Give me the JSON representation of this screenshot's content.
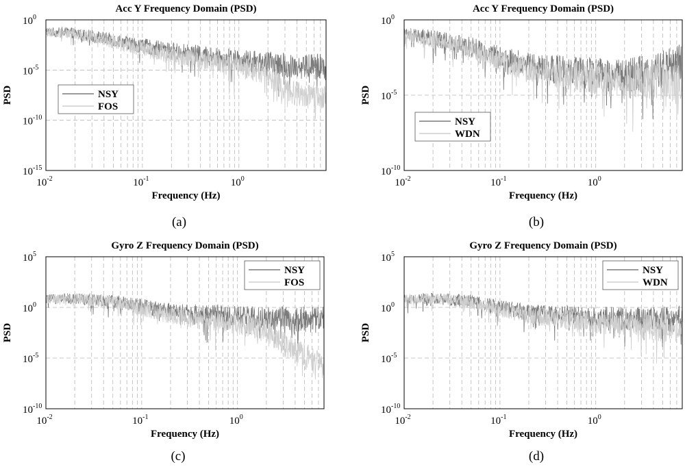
{
  "colors": {
    "series_dark": "#7a7a7a",
    "series_light": "#cfcfcf",
    "grid": "#b5b5b5",
    "axis": "#000000",
    "background": "#ffffff"
  },
  "chart_data": [
    {
      "panel_label": "(a)",
      "type": "line",
      "title": "Acc Y Frequency Domain (PSD)",
      "xlabel": "Frequency (Hz)",
      "ylabel": "PSD",
      "xscale": "log",
      "yscale": "log",
      "xlim": [
        0.01,
        8
      ],
      "ylim_exp": [
        -15,
        0
      ],
      "xticks": [
        {
          "base": "10",
          "exp": "-2"
        },
        {
          "base": "10",
          "exp": "-1"
        },
        {
          "base": "10",
          "exp": "0"
        }
      ],
      "yticks": [
        {
          "base": "10",
          "exp": "0"
        },
        {
          "base": "10",
          "exp": "-5"
        },
        {
          "base": "10",
          "exp": "-10"
        },
        {
          "base": "10",
          "exp": "-15"
        }
      ],
      "legend": {
        "position": "center-left",
        "entries": [
          "NSY",
          "FOS"
        ]
      },
      "series": [
        {
          "name": "NSY",
          "style": "dark",
          "x": [
            0.01,
            0.02,
            0.05,
            0.1,
            0.2,
            0.5,
            1,
            2,
            3,
            5,
            8
          ],
          "y_log10": [
            -1.2,
            -1.3,
            -2.0,
            -2.6,
            -3.1,
            -3.6,
            -4.0,
            -4.3,
            -4.5,
            -4.6,
            -4.7
          ]
        },
        {
          "name": "FOS",
          "style": "light",
          "x": [
            0.01,
            0.02,
            0.05,
            0.1,
            0.2,
            0.5,
            1,
            2,
            3,
            5,
            8
          ],
          "y_log10": [
            -1.2,
            -1.4,
            -2.2,
            -2.9,
            -3.6,
            -4.2,
            -4.7,
            -5.5,
            -7.0,
            -7.6,
            -7.9
          ]
        }
      ]
    },
    {
      "panel_label": "(b)",
      "type": "line",
      "title": "Acc Y Frequency Domain (PSD)",
      "xlabel": "Frequency (Hz)",
      "ylabel": "PSD",
      "xscale": "log",
      "yscale": "log",
      "xlim": [
        0.01,
        8
      ],
      "ylim_exp": [
        -10,
        0
      ],
      "xticks": [
        {
          "base": "10",
          "exp": "-2"
        },
        {
          "base": "10",
          "exp": "-1"
        },
        {
          "base": "10",
          "exp": "0"
        }
      ],
      "yticks": [
        {
          "base": "10",
          "exp": "0"
        },
        {
          "base": "10",
          "exp": "-5"
        },
        {
          "base": "10",
          "exp": "-10"
        }
      ],
      "legend": {
        "position": "lower-left",
        "entries": [
          "NSY",
          "WDN"
        ]
      },
      "series": [
        {
          "name": "NSY",
          "style": "dark",
          "x": [
            0.01,
            0.02,
            0.05,
            0.1,
            0.2,
            0.5,
            1,
            2,
            3,
            5,
            8
          ],
          "y_log10": [
            -1.0,
            -1.2,
            -1.8,
            -2.5,
            -3.0,
            -3.4,
            -3.6,
            -3.7,
            -3.6,
            -3.3,
            -2.8
          ]
        },
        {
          "name": "WDN",
          "style": "light",
          "x": [
            0.01,
            0.02,
            0.05,
            0.1,
            0.2,
            0.5,
            1,
            2,
            3,
            5,
            8
          ],
          "y_log10": [
            -1.0,
            -1.3,
            -1.9,
            -2.7,
            -3.3,
            -3.7,
            -3.9,
            -4.1,
            -4.0,
            -4.2,
            -4.3
          ]
        }
      ]
    },
    {
      "panel_label": "(c)",
      "type": "line",
      "title": "Gyro Z Frequency Domain (PSD)",
      "xlabel": "Frequency (Hz)",
      "ylabel": "PSD",
      "xscale": "log",
      "yscale": "log",
      "xlim": [
        0.01,
        8
      ],
      "ylim_exp": [
        -10,
        5
      ],
      "xticks": [
        {
          "base": "10",
          "exp": "-2"
        },
        {
          "base": "10",
          "exp": "-1"
        },
        {
          "base": "10",
          "exp": "0"
        }
      ],
      "yticks": [
        {
          "base": "10",
          "exp": "5"
        },
        {
          "base": "10",
          "exp": "0"
        },
        {
          "base": "10",
          "exp": "-5"
        },
        {
          "base": "10",
          "exp": "-10"
        }
      ],
      "legend": {
        "position": "top-right",
        "entries": [
          "NSY",
          "FOS"
        ]
      },
      "series": [
        {
          "name": "NSY",
          "style": "dark",
          "x": [
            0.01,
            0.02,
            0.05,
            0.1,
            0.2,
            0.5,
            1,
            2,
            3,
            5,
            8
          ],
          "y_log10": [
            0.8,
            0.9,
            0.6,
            0.1,
            -0.4,
            -0.7,
            -0.9,
            -1.0,
            -1.1,
            -1.2,
            -1.2
          ]
        },
        {
          "name": "FOS",
          "style": "light",
          "x": [
            0.01,
            0.02,
            0.05,
            0.1,
            0.2,
            0.5,
            1,
            2,
            3,
            5,
            8
          ],
          "y_log10": [
            0.8,
            0.9,
            0.5,
            -0.1,
            -0.8,
            -1.3,
            -1.7,
            -2.3,
            -3.6,
            -4.8,
            -5.8
          ]
        }
      ]
    },
    {
      "panel_label": "(d)",
      "type": "line",
      "title": "Gyro Z Frequency Domain (PSD)",
      "xlabel": "Frequency (Hz)",
      "ylabel": "PSD",
      "xscale": "log",
      "yscale": "log",
      "xlim": [
        0.01,
        8
      ],
      "ylim_exp": [
        -10,
        5
      ],
      "xticks": [
        {
          "base": "10",
          "exp": "-2"
        },
        {
          "base": "10",
          "exp": "-1"
        },
        {
          "base": "10",
          "exp": "0"
        }
      ],
      "yticks": [
        {
          "base": "10",
          "exp": "5"
        },
        {
          "base": "10",
          "exp": "0"
        },
        {
          "base": "10",
          "exp": "-5"
        },
        {
          "base": "10",
          "exp": "-10"
        }
      ],
      "legend": {
        "position": "top-right",
        "entries": [
          "NSY",
          "WDN"
        ]
      },
      "series": [
        {
          "name": "NSY",
          "style": "dark",
          "x": [
            0.01,
            0.02,
            0.05,
            0.1,
            0.2,
            0.5,
            1,
            2,
            3,
            5,
            8
          ],
          "y_log10": [
            0.8,
            0.9,
            0.6,
            0.0,
            -0.5,
            -0.8,
            -1.0,
            -1.1,
            -1.1,
            -1.2,
            -1.1
          ]
        },
        {
          "name": "WDN",
          "style": "light",
          "x": [
            0.01,
            0.02,
            0.05,
            0.1,
            0.2,
            0.5,
            1,
            2,
            3,
            5,
            8
          ],
          "y_log10": [
            0.8,
            0.9,
            0.5,
            -0.2,
            -0.8,
            -1.2,
            -1.5,
            -1.8,
            -1.9,
            -2.1,
            -2.3
          ]
        }
      ]
    }
  ]
}
